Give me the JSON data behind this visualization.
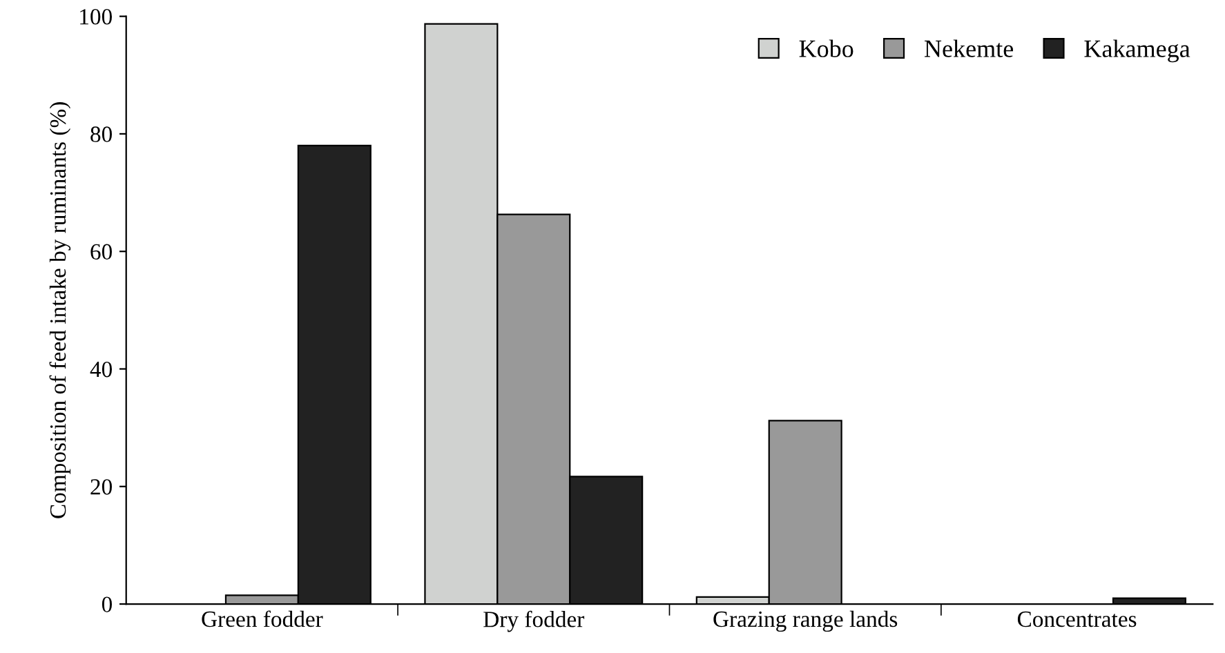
{
  "chart_data": {
    "type": "bar",
    "ylabel": "Composition of feed intake by ruminants (%)",
    "categories": [
      "Green fodder",
      "Dry fodder",
      "Grazing range lands",
      "Concentrates"
    ],
    "series": [
      {
        "name": "Kobo",
        "color": "#d0d2d0",
        "values": [
          null,
          98.7,
          1.2,
          null
        ]
      },
      {
        "name": "Nekemte",
        "color": "#999999",
        "values": [
          1.5,
          66.3,
          31.2,
          null
        ]
      },
      {
        "name": "Kakamega",
        "color": "#222222",
        "values": [
          78,
          21.7,
          null,
          1
        ]
      }
    ],
    "ylim": [
      0,
      100
    ],
    "yticks": [
      0,
      20,
      40,
      60,
      80,
      100
    ],
    "grid": false,
    "legend": "top right"
  }
}
